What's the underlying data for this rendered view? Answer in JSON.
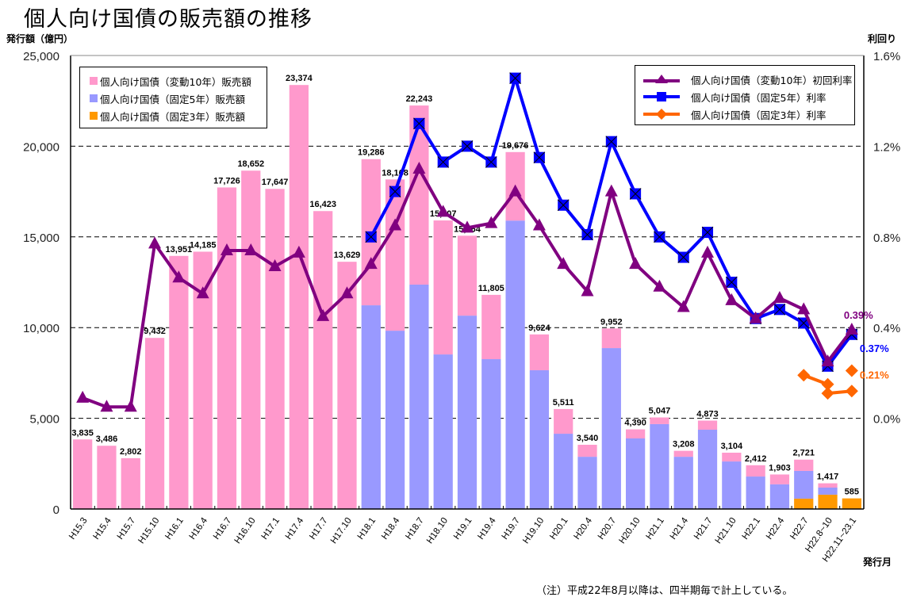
{
  "title": "個人向け国債の販売額の推移",
  "left_axis_label": "発行額（億円）",
  "right_axis_label": "利回り",
  "x_axis_label": "発行月",
  "note": "（注）平成22年8月以降は、四半期毎で計上している。",
  "legend_left": [
    {
      "label": "個人向け国債（変動10年）販売額",
      "color": "#FF99CC"
    },
    {
      "label": "個人向け国債（固定5年）販売額",
      "color": "#9999FF"
    },
    {
      "label": "個人向け国債（固定3年）販売額",
      "color": "#FF9900"
    }
  ],
  "legend_right": [
    {
      "label": "個人向け国債（変動10年）初回利率",
      "color": "#800080",
      "marker": "triangle"
    },
    {
      "label": "個人向け国債（固定5年）利率",
      "color": "#0000FF",
      "marker": "square"
    },
    {
      "label": "個人向け国債（固定3年）利率",
      "color": "#FF6600",
      "marker": "diamond"
    }
  ],
  "chart_data": {
    "type": "bar+line",
    "title": "個人向け国債の販売額の推移",
    "xlabel": "発行月",
    "ylabel": "発行額（億円）",
    "y2label": "利回り",
    "ylim": [
      0,
      25000
    ],
    "y2lim": [
      -0.4,
      1.6
    ],
    "yticks": [
      "0",
      "5,000",
      "10,000",
      "15,000",
      "20,000",
      "25,000"
    ],
    "ytick_values": [
      0,
      5000,
      10000,
      15000,
      20000,
      25000
    ],
    "y2ticks": [
      "0.0%",
      "0.4%",
      "0.8%",
      "1.2%",
      "1.6%"
    ],
    "y2tick_values": [
      0.0,
      0.4,
      0.8,
      1.2,
      1.6
    ],
    "grid": "dashed horizontal",
    "categories": [
      "H15.3",
      "H15.4",
      "H15.7",
      "H15.10",
      "H16.1",
      "H16.4",
      "H16.7",
      "H16.10",
      "H17.1",
      "H17.4",
      "H17.7",
      "H17.10",
      "H18.1",
      "H18.4",
      "H18.7",
      "H18.10",
      "H19.1",
      "H19.4",
      "H19.7",
      "H19.10",
      "H20.1",
      "H20.4",
      "H20.7",
      "H20.10",
      "H21.1",
      "H21.4",
      "H21.7",
      "H21.10",
      "H22.1",
      "H22.4",
      "H22.7",
      "H22.8~10",
      "H22.11~23.1"
    ],
    "totals": [
      3835,
      3486,
      2802,
      9432,
      13951,
      14185,
      17726,
      18652,
      17647,
      23374,
      16423,
      13629,
      19286,
      18168,
      22243,
      15907,
      15064,
      11805,
      19676,
      9624,
      5511,
      3540,
      9952,
      4390,
      5047,
      3208,
      4873,
      3104,
      2412,
      1903,
      2721,
      1417,
      585
    ],
    "total_labels": [
      "3,835",
      "3,486",
      "2,802",
      "9,432",
      "13,951",
      "14,185",
      "17,726",
      "18,652",
      "17,647",
      "23,374",
      "16,423",
      "13,629",
      "19,286",
      "18,168",
      "22,243",
      "15,907",
      "15,064",
      "11,805",
      "19,676",
      "9,624",
      "5,511",
      "3,540",
      "9,952",
      "4,390",
      "5,047",
      "3,208",
      "4,873",
      "3,104",
      "2,412",
      "1,903",
      "2,721",
      "1,417",
      "585"
    ],
    "bar_series": [
      {
        "name": "個人向け国債（固定3年）販売額",
        "color": "#FF9900",
        "values": [
          0,
          0,
          0,
          0,
          0,
          0,
          0,
          0,
          0,
          0,
          0,
          0,
          0,
          0,
          0,
          0,
          0,
          0,
          0,
          0,
          0,
          0,
          0,
          0,
          0,
          0,
          0,
          0,
          0,
          0,
          570,
          790,
          585
        ]
      },
      {
        "name": "個人向け国債（固定5年）販売額",
        "color": "#9999FF",
        "values": [
          0,
          0,
          0,
          0,
          0,
          0,
          0,
          0,
          0,
          0,
          0,
          0,
          11230,
          9830,
          12370,
          8520,
          10660,
          8260,
          15900,
          7650,
          4150,
          2880,
          8870,
          3890,
          4680,
          2880,
          4370,
          2620,
          1790,
          1360,
          1530,
          390,
          0
        ]
      },
      {
        "name": "個人向け国債（変動10年）販売額",
        "color": "#FF99CC",
        "values": "remainder"
      }
    ],
    "line_series": [
      {
        "name": "個人向け国債（変動10年）初回利率",
        "color": "#800080",
        "marker": "triangle",
        "values": [
          0.09,
          0.05,
          0.05,
          0.77,
          0.62,
          0.55,
          0.74,
          0.74,
          0.67,
          0.73,
          0.45,
          0.55,
          0.68,
          0.85,
          1.1,
          0.91,
          0.84,
          0.86,
          1.0,
          0.85,
          0.68,
          0.56,
          1.0,
          0.68,
          0.58,
          0.49,
          0.73,
          0.52,
          0.44,
          0.53,
          0.48,
          0.25,
          0.39
        ],
        "end_label": "0.39%"
      },
      {
        "name": "個人向け国債（固定5年）利率",
        "color": "#0000FF",
        "marker": "square",
        "values": [
          null,
          null,
          null,
          null,
          null,
          null,
          null,
          null,
          null,
          null,
          null,
          null,
          0.8,
          1.0,
          1.3,
          1.13,
          1.2,
          1.13,
          1.5,
          1.15,
          0.94,
          0.81,
          1.22,
          0.99,
          0.8,
          0.71,
          0.82,
          0.6,
          0.44,
          0.48,
          0.42,
          0.23,
          0.37
        ],
        "end_label": "0.37%"
      },
      {
        "name": "個人向け国債（固定3年）利率",
        "color": "#FF6600",
        "marker": "diamond",
        "segments": [
          {
            "values": [
              null,
              null,
              null,
              null,
              null,
              null,
              null,
              null,
              null,
              null,
              null,
              null,
              null,
              null,
              null,
              null,
              null,
              null,
              null,
              null,
              null,
              null,
              null,
              null,
              null,
              null,
              null,
              null,
              null,
              null,
              0.19,
              0.15,
              null
            ]
          },
          {
            "values": [
              null,
              null,
              null,
              null,
              null,
              null,
              null,
              null,
              null,
              null,
              null,
              null,
              null,
              null,
              null,
              null,
              null,
              null,
              null,
              null,
              null,
              null,
              null,
              null,
              null,
              null,
              null,
              null,
              null,
              null,
              null,
              0.11,
              0.12
            ]
          },
          {
            "values": [
              null,
              null,
              null,
              null,
              null,
              null,
              null,
              null,
              null,
              null,
              null,
              null,
              null,
              null,
              null,
              null,
              null,
              null,
              null,
              null,
              null,
              null,
              null,
              null,
              null,
              null,
              null,
              null,
              null,
              null,
              null,
              null,
              0.21
            ]
          }
        ],
        "end_label": "0.21%"
      }
    ]
  }
}
